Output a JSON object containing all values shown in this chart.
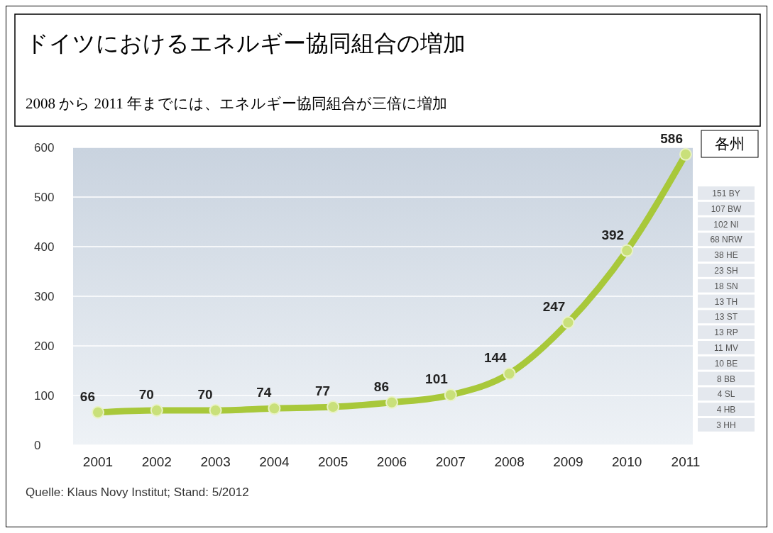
{
  "chart_data": {
    "type": "line",
    "title": "ドイツにおけるエネルギー協同組合の増加",
    "subtitle": "2008 から 2011 年までには、エネルギー協同組合が三倍に増加",
    "categories": [
      "2001",
      "2002",
      "2003",
      "2004",
      "2005",
      "2006",
      "2007",
      "2008",
      "2009",
      "2010",
      "2011"
    ],
    "series": [
      {
        "color": "#a8c83a",
        "values": [
          66,
          70,
          70,
          74,
          77,
          86,
          101,
          144,
          247,
          392,
          586
        ]
      }
    ],
    "ylim": [
      0,
      600
    ],
    "yticks": [
      0,
      100,
      200,
      300,
      400,
      500,
      600
    ],
    "grid": "y",
    "marker": "circle",
    "line_style": "solid",
    "data_labels": true,
    "annotations": [
      "Quelle: Klaus Novy Institut; Stand: 5/2012",
      "各州",
      "151 BY",
      "107 BW",
      "102 NI",
      "68 NRW",
      "38 HE",
      "23 SH",
      "18 SN",
      "13 TH",
      "13 ST",
      "13 RP",
      "11 MV",
      "10 BE",
      "8 BB",
      "4 SL",
      "4 HB",
      "3 HH"
    ]
  }
}
